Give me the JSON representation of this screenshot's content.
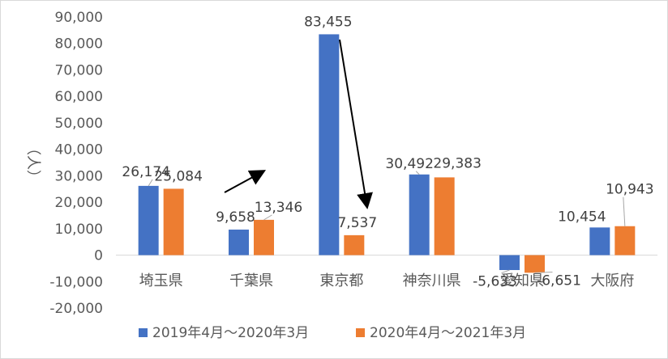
{
  "chart_data": {
    "type": "bar",
    "categories": [
      "埼玉県",
      "千葉県",
      "東京都",
      "神奈川県",
      "愛知県",
      "大阪府"
    ],
    "series": [
      {
        "name": "2019年4月～2020年3月",
        "values": [
          26174,
          9658,
          83455,
          30492,
          -5633,
          10454
        ],
        "labels": [
          "26,174",
          "9,658",
          "83,455",
          "30,492",
          "-5,633",
          "10,454"
        ],
        "color": "#4472c4"
      },
      {
        "name": "2020年4月～2021年3月",
        "values": [
          25084,
          13346,
          7537,
          29383,
          -6651,
          10943
        ],
        "labels": [
          "25,084",
          "13,346",
          "7,537",
          "29,383",
          "-6,651",
          "10,943"
        ],
        "color": "#ed7d31"
      }
    ],
    "ylabel": "（人）",
    "ylim": [
      -20000,
      90000
    ],
    "yticks": [
      90000,
      80000,
      70000,
      60000,
      50000,
      40000,
      30000,
      20000,
      10000,
      0,
      -10000,
      -20000
    ],
    "ytick_labels": [
      "90,000",
      "80,000",
      "70,000",
      "60,000",
      "50,000",
      "40,000",
      "30,000",
      "20,000",
      "10,000",
      "0",
      "-10,000",
      "-20,000"
    ],
    "grid": false,
    "legend": "bottom",
    "annotations": [
      "arrow-up-chiba",
      "arrow-down-tokyo"
    ]
  }
}
